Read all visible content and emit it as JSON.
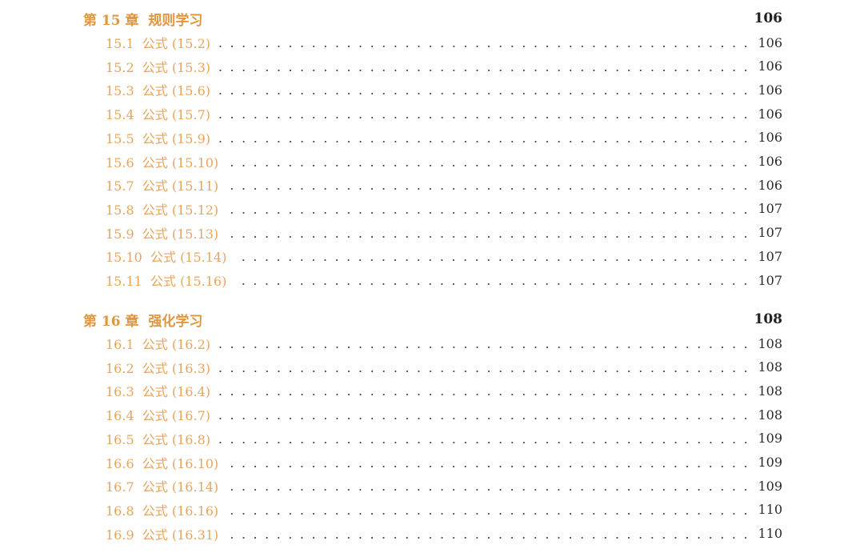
{
  "chapters": [
    {
      "title": "第 15 章  规则学习",
      "page": "106",
      "entries": [
        {
          "title": "15.1  公式 (15.2)",
          "page": "106"
        },
        {
          "title": "15.2  公式 (15.3)",
          "page": "106"
        },
        {
          "title": "15.3  公式 (15.6)",
          "page": "106"
        },
        {
          "title": "15.4  公式 (15.7)",
          "page": "106"
        },
        {
          "title": "15.5  公式 (15.9)",
          "page": "106"
        },
        {
          "title": "15.6  公式 (15.10)",
          "page": "106"
        },
        {
          "title": "15.7  公式 (15.11)",
          "page": "106"
        },
        {
          "title": "15.8  公式 (15.12)",
          "page": "107"
        },
        {
          "title": "15.9  公式 (15.13)",
          "page": "107"
        },
        {
          "title": "15.10  公式 (15.14)",
          "page": "107"
        },
        {
          "title": "15.11  公式 (15.16)",
          "page": "107"
        }
      ]
    },
    {
      "title": "第 16 章  强化学习",
      "page": "108",
      "entries": [
        {
          "title": "16.1  公式 (16.2)",
          "page": "108"
        },
        {
          "title": "16.2  公式 (16.3)",
          "page": "108"
        },
        {
          "title": "16.3  公式 (16.4)",
          "page": "108"
        },
        {
          "title": "16.4  公式 (16.7)",
          "page": "108"
        },
        {
          "title": "16.5  公式 (16.8)",
          "page": "109"
        },
        {
          "title": "16.6  公式 (16.10)",
          "page": "109"
        },
        {
          "title": "16.7  公式 (16.14)",
          "page": "109"
        },
        {
          "title": "16.8  公式 (16.16)",
          "page": "110"
        },
        {
          "title": "16.9  公式 (16.31)",
          "page": "110"
        }
      ]
    }
  ]
}
